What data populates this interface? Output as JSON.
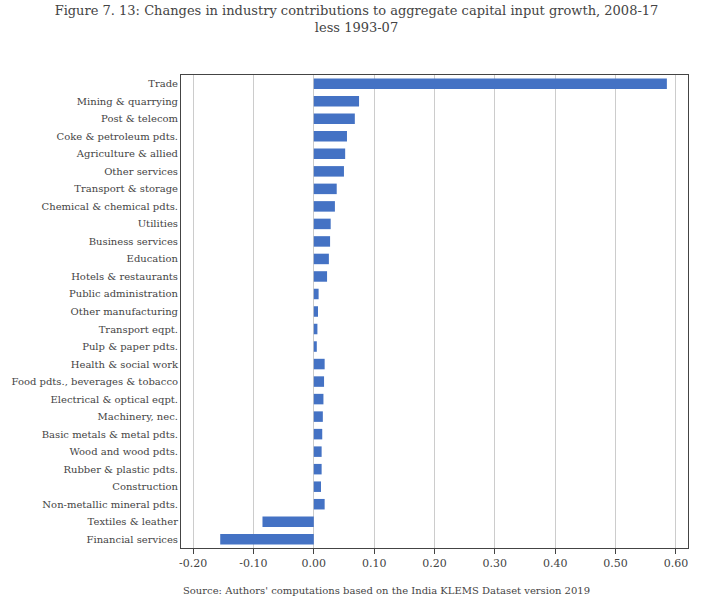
{
  "chart_data": {
    "type": "bar",
    "orientation": "horizontal",
    "title": "Figure 7. 13: Changes in industry contributions to aggregate capital input growth, 2008-17\nless 1993-07",
    "categories": [
      "Trade",
      "Mining & quarrying",
      "Post & telecom",
      "Coke & petroleum pdts.",
      "Agriculture & allied",
      "Other services",
      "Transport & storage",
      "Chemical & chemical pdts.",
      "Utilities",
      "Business services",
      "Education",
      "Hotels & restaurants",
      "Public administration",
      "Other manufacturing",
      "Transport eqpt.",
      "Pulp & paper pdts.",
      "Health & social work",
      "Food pdts., beverages & tobacco",
      "Electrical & optical eqpt.",
      "Machinery, nec.",
      "Basic metals & metal pdts.",
      "Wood and wood pdts.",
      "Rubber & plastic pdts.",
      "Construction",
      "Non-metallic mineral pdts.",
      "Textiles & leather",
      "Financial services"
    ],
    "values": [
      0.585,
      0.075,
      0.068,
      0.055,
      0.052,
      0.05,
      0.038,
      0.035,
      0.028,
      0.027,
      0.025,
      0.022,
      0.008,
      0.007,
      0.006,
      0.005,
      0.018,
      0.017,
      0.016,
      0.015,
      0.014,
      0.013,
      0.013,
      0.012,
      0.018,
      -0.085,
      -0.155
    ],
    "color": "#4472C4",
    "xlim": [
      -0.22,
      0.62
    ],
    "xticks": [
      {
        "value": -0.2,
        "label": "-0.20"
      },
      {
        "value": -0.1,
        "label": "-0.10"
      },
      {
        "value": 0.0,
        "label": "0.00"
      },
      {
        "value": 0.1,
        "label": "0.10"
      },
      {
        "value": 0.2,
        "label": "0.20"
      },
      {
        "value": 0.3,
        "label": "0.30"
      },
      {
        "value": 0.4,
        "label": "0.40"
      },
      {
        "value": 0.5,
        "label": "0.50"
      },
      {
        "value": 0.6,
        "label": "0.60"
      }
    ],
    "grid": true,
    "annotations": [
      "Source: Authors' computations based on the India KLEMS Dataset version 2019"
    ]
  }
}
